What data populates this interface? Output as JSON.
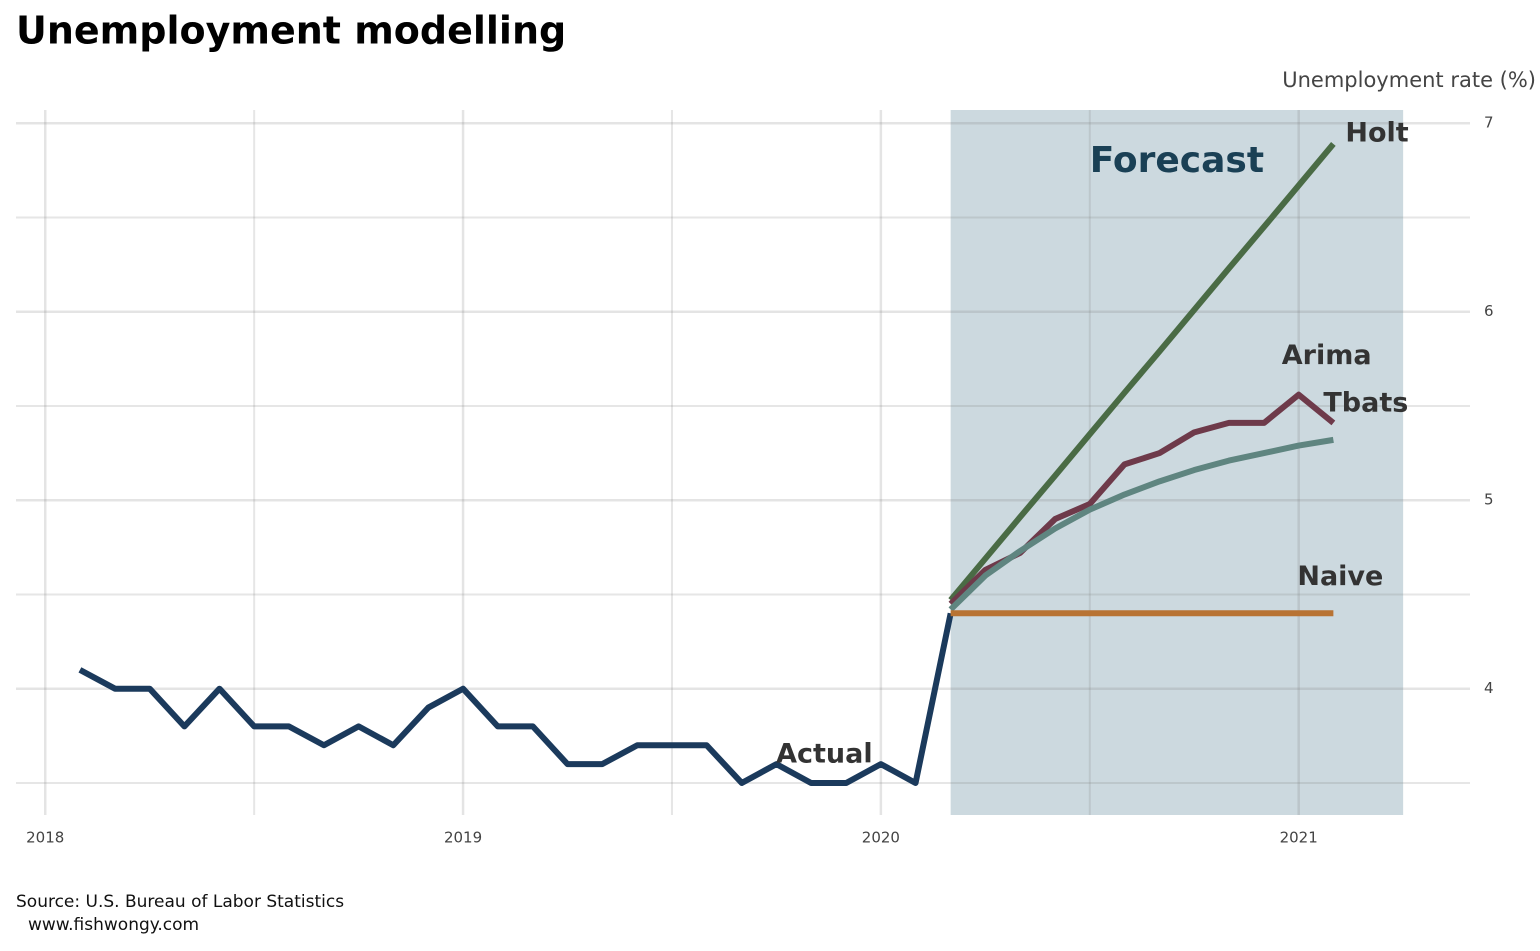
{
  "chart_data": {
    "type": "line",
    "title": "Unemployment modelling",
    "y_axis_label": "Unemployment rate (%)",
    "source": "Source: U.S. Bureau of Labor Statistics",
    "website": "www.fishwongy.com",
    "forecast_label": "Forecast",
    "forecast_region": [
      2020.167,
      2021.25
    ],
    "forecast_color": "#ccd9df",
    "xlim": [
      2017.93,
      2021.41
    ],
    "xticks": [
      2018,
      2019,
      2020,
      2021
    ],
    "xminor": [
      2018.5,
      2019.5,
      2020.5
    ],
    "ylim": [
      3.33,
      7.07
    ],
    "yticks": [
      4,
      5,
      6,
      7
    ],
    "yminor": [
      3.5,
      4.5,
      5.5,
      6.5
    ],
    "grid": true,
    "series": [
      {
        "name": "Actual",
        "color": "#1b3a5c",
        "x": [
          2018.083,
          2018.167,
          2018.25,
          2018.333,
          2018.417,
          2018.5,
          2018.583,
          2018.667,
          2018.75,
          2018.833,
          2018.917,
          2019.0,
          2019.083,
          2019.167,
          2019.25,
          2019.333,
          2019.417,
          2019.5,
          2019.583,
          2019.667,
          2019.75,
          2019.833,
          2019.917,
          2020.0,
          2020.083,
          2020.167
        ],
        "values": [
          4.1,
          4.0,
          4.0,
          3.8,
          4.0,
          3.8,
          3.8,
          3.7,
          3.8,
          3.7,
          3.9,
          4.0,
          3.8,
          3.8,
          3.6,
          3.6,
          3.7,
          3.7,
          3.7,
          3.5,
          3.6,
          3.5,
          3.5,
          3.6,
          3.5,
          4.4
        ]
      },
      {
        "name": "Holt",
        "color": "#4a6b45",
        "x": [
          2020.167,
          2020.25,
          2020.333,
          2020.417,
          2020.5,
          2020.583,
          2020.667,
          2020.75,
          2020.833,
          2020.917,
          2021.0,
          2021.083
        ],
        "values": [
          4.47,
          4.69,
          4.91,
          5.13,
          5.35,
          5.57,
          5.79,
          6.01,
          6.23,
          6.45,
          6.67,
          6.89
        ]
      },
      {
        "name": "Arima",
        "color": "#6e3a4a",
        "x": [
          2020.167,
          2020.25,
          2020.333,
          2020.417,
          2020.5,
          2020.583,
          2020.667,
          2020.75,
          2020.833,
          2020.917,
          2021.0,
          2021.083
        ],
        "values": [
          4.45,
          4.63,
          4.72,
          4.9,
          4.98,
          5.19,
          5.25,
          5.36,
          5.41,
          5.41,
          5.56,
          5.41
        ]
      },
      {
        "name": "Tbats",
        "color": "#5f8580",
        "x": [
          2020.167,
          2020.25,
          2020.333,
          2020.417,
          2020.5,
          2020.583,
          2020.667,
          2020.75,
          2020.833,
          2020.917,
          2021.0,
          2021.083
        ],
        "values": [
          4.42,
          4.6,
          4.73,
          4.85,
          4.95,
          5.03,
          5.1,
          5.16,
          5.21,
          5.25,
          5.29,
          5.32
        ]
      },
      {
        "name": "Naive",
        "color": "#b87333",
        "x": [
          2020.167,
          2020.25,
          2020.333,
          2020.417,
          2020.5,
          2020.583,
          2020.667,
          2020.75,
          2020.833,
          2020.917,
          2021.0,
          2021.083
        ],
        "values": [
          4.4,
          4.4,
          4.4,
          4.4,
          4.4,
          4.4,
          4.4,
          4.4,
          4.4,
          4.4,
          4.4,
          4.4
        ]
      }
    ]
  }
}
